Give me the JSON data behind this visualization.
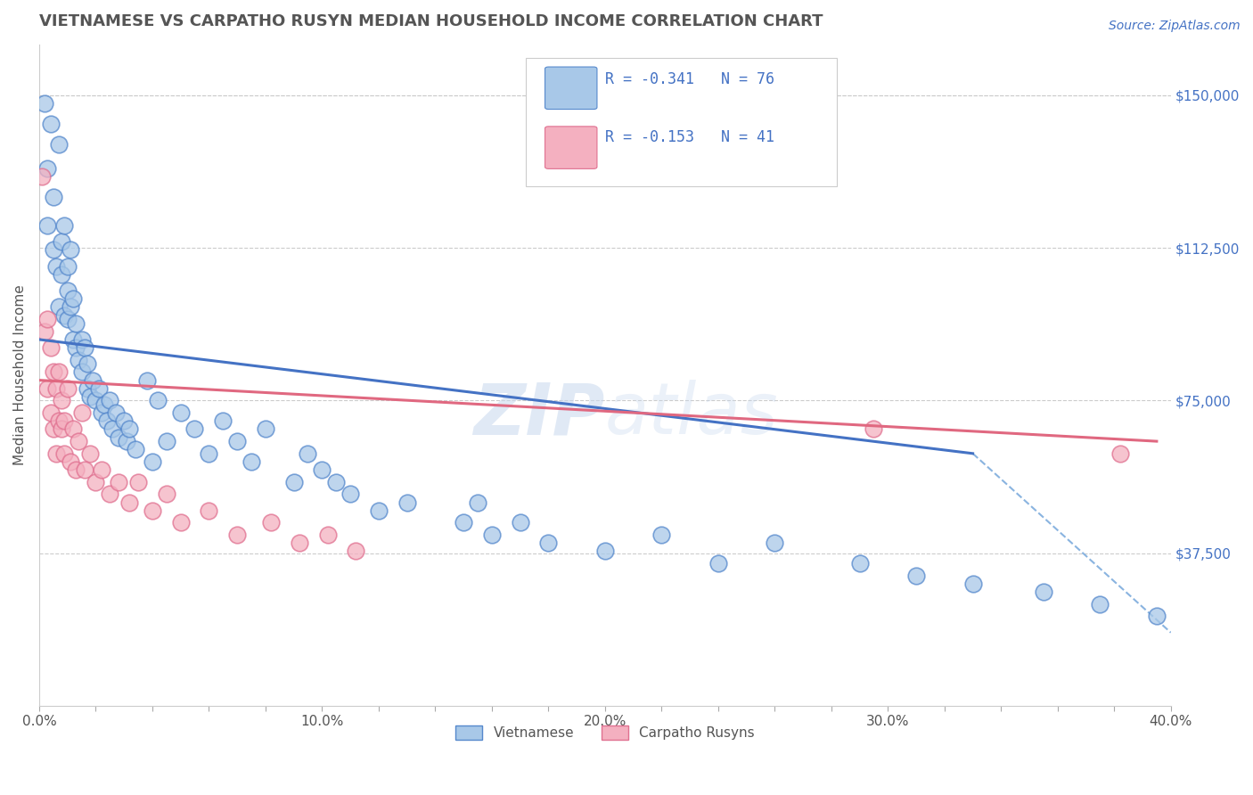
{
  "title": "VIETNAMESE VS CARPATHO RUSYN MEDIAN HOUSEHOLD INCOME CORRELATION CHART",
  "source": "Source: ZipAtlas.com",
  "ylabel": "Median Household Income",
  "xlim": [
    0.0,
    0.4
  ],
  "ylim": [
    0,
    162500
  ],
  "xtick_labels": [
    "0.0%",
    "",
    "",
    "",
    "",
    "10.0%",
    "",
    "",
    "",
    "",
    "20.0%",
    "",
    "",
    "",
    "",
    "30.0%",
    "",
    "",
    "",
    "",
    "40.0%"
  ],
  "xtick_values": [
    0.0,
    0.02,
    0.04,
    0.06,
    0.08,
    0.1,
    0.12,
    0.14,
    0.16,
    0.18,
    0.2,
    0.22,
    0.24,
    0.26,
    0.28,
    0.3,
    0.32,
    0.34,
    0.36,
    0.38,
    0.4
  ],
  "ytick_labels": [
    "$37,500",
    "$75,000",
    "$112,500",
    "$150,000"
  ],
  "ytick_values": [
    37500,
    75000,
    112500,
    150000
  ],
  "watermark_top": "ZIP",
  "watermark_bot": "atlas",
  "legend_R1": "R = -0.341",
  "legend_N1": "N = 76",
  "legend_R2": "R = -0.153",
  "legend_N2": "N = 41",
  "viet_color": "#a8c8e8",
  "carp_color": "#f4b0c0",
  "viet_edge_color": "#5588cc",
  "carp_edge_color": "#e07090",
  "viet_line_color": "#4472c4",
  "carp_line_color": "#e06880",
  "dash_line_color": "#8ab4e0",
  "legend_color": "#4472c4",
  "title_color": "#555555",
  "source_color": "#4472c4",
  "ytick_color": "#4472c4",
  "xtick_color": "#555555",
  "background_color": "#ffffff",
  "viet_scatter_x": [
    0.002,
    0.003,
    0.003,
    0.004,
    0.005,
    0.005,
    0.006,
    0.007,
    0.007,
    0.008,
    0.008,
    0.009,
    0.009,
    0.01,
    0.01,
    0.01,
    0.011,
    0.011,
    0.012,
    0.012,
    0.013,
    0.013,
    0.014,
    0.015,
    0.015,
    0.016,
    0.017,
    0.017,
    0.018,
    0.019,
    0.02,
    0.021,
    0.022,
    0.023,
    0.024,
    0.025,
    0.026,
    0.027,
    0.028,
    0.03,
    0.031,
    0.032,
    0.034,
    0.038,
    0.04,
    0.042,
    0.045,
    0.05,
    0.055,
    0.06,
    0.065,
    0.07,
    0.075,
    0.08,
    0.09,
    0.095,
    0.1,
    0.105,
    0.11,
    0.12,
    0.13,
    0.15,
    0.155,
    0.16,
    0.17,
    0.18,
    0.2,
    0.22,
    0.24,
    0.26,
    0.29,
    0.31,
    0.33,
    0.355,
    0.375,
    0.395
  ],
  "viet_scatter_y": [
    148000,
    132000,
    118000,
    143000,
    125000,
    112000,
    108000,
    138000,
    98000,
    114000,
    106000,
    118000,
    96000,
    102000,
    95000,
    108000,
    98000,
    112000,
    90000,
    100000,
    88000,
    94000,
    85000,
    90000,
    82000,
    88000,
    84000,
    78000,
    76000,
    80000,
    75000,
    78000,
    72000,
    74000,
    70000,
    75000,
    68000,
    72000,
    66000,
    70000,
    65000,
    68000,
    63000,
    80000,
    60000,
    75000,
    65000,
    72000,
    68000,
    62000,
    70000,
    65000,
    60000,
    68000,
    55000,
    62000,
    58000,
    55000,
    52000,
    48000,
    50000,
    45000,
    50000,
    42000,
    45000,
    40000,
    38000,
    42000,
    35000,
    40000,
    35000,
    32000,
    30000,
    28000,
    25000,
    22000
  ],
  "carp_scatter_x": [
    0.001,
    0.002,
    0.003,
    0.003,
    0.004,
    0.004,
    0.005,
    0.005,
    0.006,
    0.006,
    0.007,
    0.007,
    0.008,
    0.008,
    0.009,
    0.009,
    0.01,
    0.011,
    0.012,
    0.013,
    0.014,
    0.015,
    0.016,
    0.018,
    0.02,
    0.022,
    0.025,
    0.028,
    0.032,
    0.035,
    0.04,
    0.045,
    0.05,
    0.06,
    0.07,
    0.082,
    0.092,
    0.102,
    0.112,
    0.295,
    0.382
  ],
  "carp_scatter_y": [
    130000,
    92000,
    95000,
    78000,
    88000,
    72000,
    82000,
    68000,
    78000,
    62000,
    82000,
    70000,
    68000,
    75000,
    62000,
    70000,
    78000,
    60000,
    68000,
    58000,
    65000,
    72000,
    58000,
    62000,
    55000,
    58000,
    52000,
    55000,
    50000,
    55000,
    48000,
    52000,
    45000,
    48000,
    42000,
    45000,
    40000,
    42000,
    38000,
    68000,
    62000
  ],
  "viet_line_x": [
    0.0,
    0.33
  ],
  "viet_line_y": [
    90000,
    62000
  ],
  "carp_line_x": [
    0.0,
    0.395
  ],
  "carp_line_y": [
    80000,
    65000
  ],
  "dash_line_x": [
    0.33,
    0.4
  ],
  "dash_line_y": [
    62000,
    18000
  ]
}
